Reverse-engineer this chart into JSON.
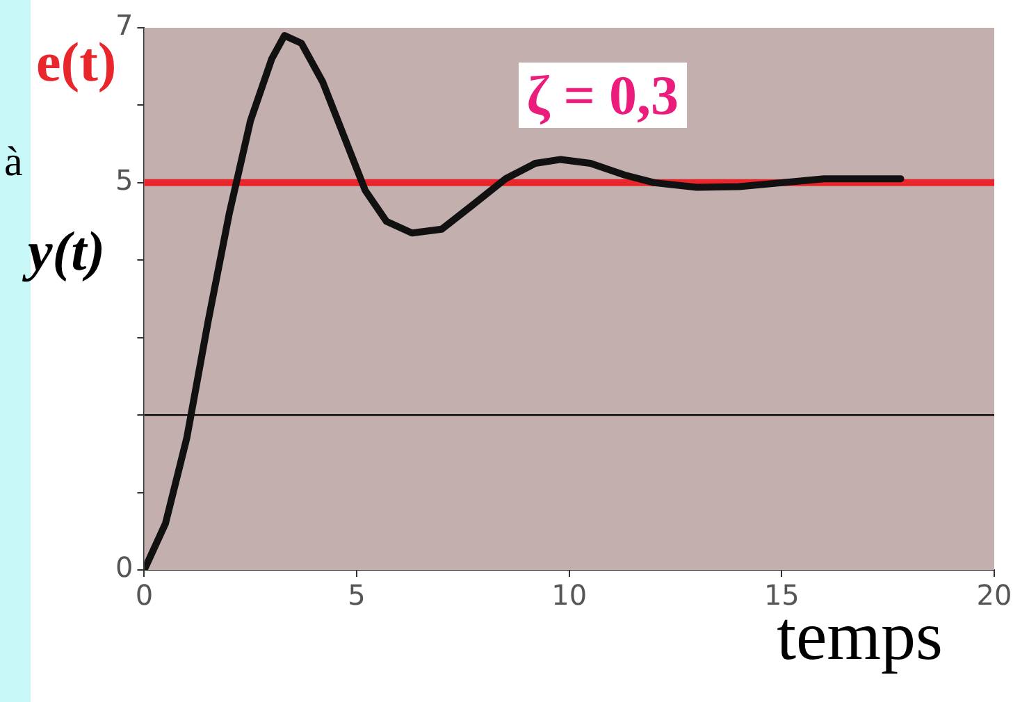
{
  "chart_data": {
    "type": "line",
    "xlabel": "temps",
    "xlim": [
      0,
      20
    ],
    "xticks": [
      0,
      5,
      10,
      15,
      20
    ],
    "ylim": [
      0,
      7
    ],
    "yticks": [
      0,
      {
        "value": 1,
        "label": null
      },
      {
        "value": 2,
        "label": null
      },
      {
        "value": 3,
        "label": null
      },
      {
        "value": 4,
        "label": null
      },
      5,
      {
        "value": 6,
        "label": null
      },
      7
    ],
    "grid": false,
    "legend": false,
    "marker": "none",
    "line_style": "solid",
    "series": [
      {
        "color": "#111111",
        "x": [
          0,
          0.5,
          1,
          1.5,
          2,
          2.5,
          3,
          3.3,
          3.7,
          4.2,
          4.7,
          5.2,
          5.7,
          6.3,
          7,
          7.7,
          8.5,
          9.2,
          9.8,
          10.5,
          11.3,
          12,
          13,
          14,
          15,
          16,
          17,
          17.8
        ],
        "values": [
          0,
          0.6,
          1.7,
          3.2,
          4.6,
          5.8,
          6.6,
          6.9,
          6.8,
          6.3,
          5.6,
          4.9,
          4.5,
          4.35,
          4.4,
          4.7,
          5.05,
          5.25,
          5.3,
          5.25,
          5.1,
          5.0,
          4.94,
          4.95,
          5.0,
          5.05,
          5.05,
          5.05
        ]
      }
    ],
    "ref_lines": [
      {
        "axis": "y",
        "value": 5,
        "label": "e(t)",
        "color": "#e8262c"
      },
      {
        "axis": "y",
        "value": 2,
        "color": "#000000"
      }
    ],
    "annotations": [
      "y(t)",
      "ζ = 0,3",
      "à"
    ]
  }
}
